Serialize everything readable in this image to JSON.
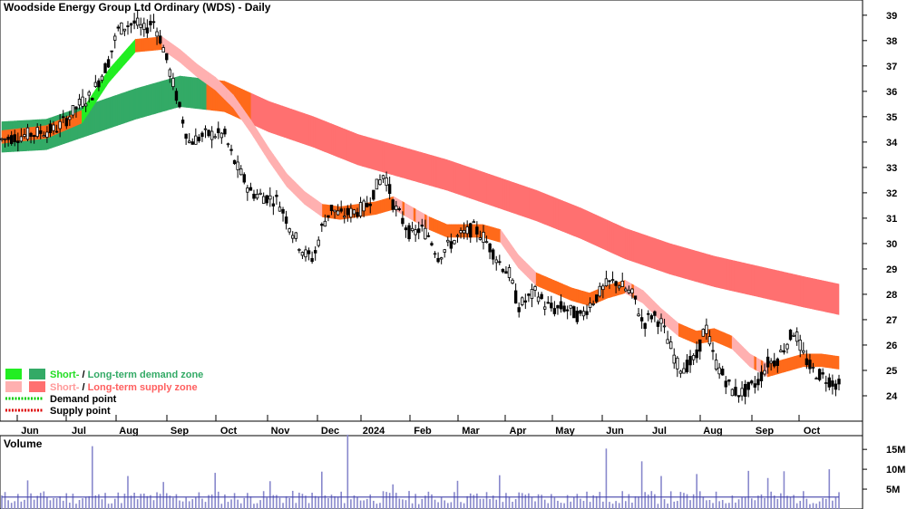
{
  "chart_data": {
    "type": "candlestick",
    "title": "Woodside Energy Group Ltd Ordinary (WDS) - Daily",
    "y_axis": {
      "ticks": [
        24,
        25,
        26,
        27,
        28,
        29,
        30,
        31,
        32,
        33,
        34,
        35,
        36,
        37,
        38,
        39
      ],
      "ylim": [
        23.0,
        39.6
      ],
      "position": "right"
    },
    "x_axis": {
      "labels": [
        "Jun",
        "Jul",
        "Aug",
        "Sep",
        "Oct",
        "Nov",
        "Dec",
        "2024",
        "Feb",
        "Mar",
        "Apr",
        "May",
        "Jun",
        "Jul",
        "Aug",
        "Sep",
        "Oct"
      ]
    },
    "price_path": [
      [
        0,
        34.1
      ],
      [
        3,
        34.3
      ],
      [
        6,
        34.5
      ],
      [
        7,
        34.8
      ],
      [
        9,
        35.6
      ],
      [
        10,
        35.8
      ],
      [
        12,
        37.2
      ],
      [
        13,
        38.4
      ],
      [
        14,
        38.6
      ],
      [
        15,
        38.7
      ],
      [
        16,
        38.4
      ],
      [
        17,
        38.8
      ],
      [
        18,
        37.9
      ],
      [
        19,
        36.6
      ],
      [
        20,
        35.3
      ],
      [
        21,
        34.0
      ],
      [
        23,
        34.3
      ],
      [
        25,
        34.3
      ],
      [
        26,
        33.3
      ],
      [
        28,
        32.0
      ],
      [
        31,
        31.7
      ],
      [
        33,
        30.2
      ],
      [
        34,
        29.6
      ],
      [
        35,
        29.4
      ],
      [
        36,
        30.7
      ],
      [
        37,
        31.4
      ],
      [
        38,
        31.1
      ],
      [
        40,
        31.3
      ],
      [
        41,
        31.5
      ],
      [
        42,
        32.2
      ],
      [
        43,
        32.8
      ],
      [
        44,
        31.5
      ],
      [
        46,
        30.3
      ],
      [
        47,
        30.6
      ],
      [
        48,
        30.3
      ],
      [
        49,
        29.5
      ],
      [
        51,
        30.2
      ],
      [
        52,
        30.4
      ],
      [
        53,
        30.6
      ],
      [
        54,
        30.3
      ],
      [
        56,
        29.2
      ],
      [
        57,
        28.8
      ],
      [
        58,
        27.5
      ],
      [
        59,
        27.8
      ],
      [
        60,
        28.1
      ],
      [
        61,
        27.6
      ],
      [
        62,
        27.4
      ],
      [
        63,
        27.5
      ],
      [
        64,
        27.3
      ],
      [
        65,
        27.1
      ],
      [
        66,
        27.6
      ],
      [
        67,
        28.0
      ],
      [
        68,
        28.4
      ],
      [
        69,
        28.5
      ],
      [
        71,
        27.9
      ],
      [
        72,
        26.8
      ],
      [
        73,
        27.2
      ],
      [
        74,
        26.9
      ],
      [
        75,
        26.0
      ],
      [
        76,
        25.1
      ],
      [
        77,
        25.2
      ],
      [
        78,
        25.5
      ],
      [
        79,
        26.8
      ],
      [
        80,
        25.4
      ],
      [
        81,
        24.8
      ],
      [
        82,
        24.2
      ],
      [
        83,
        24.1
      ],
      [
        84,
        24.3
      ],
      [
        85,
        24.6
      ],
      [
        86,
        25.3
      ],
      [
        87,
        25.4
      ],
      [
        88,
        26.0
      ],
      [
        89,
        26.6
      ],
      [
        90,
        25.6
      ],
      [
        91,
        25.0
      ],
      [
        92,
        24.8
      ],
      [
        93,
        24.6
      ],
      [
        94,
        24.4
      ]
    ],
    "short_term_zone": [
      [
        0,
        34.2
      ],
      [
        5,
        34.4
      ],
      [
        9,
        35.0
      ],
      [
        12,
        36.6
      ],
      [
        15,
        37.8
      ],
      [
        18,
        37.9
      ],
      [
        20,
        37.4
      ],
      [
        22,
        36.8
      ],
      [
        24,
        36.3
      ],
      [
        26,
        35.6
      ],
      [
        28,
        34.6
      ],
      [
        30,
        33.5
      ],
      [
        32,
        32.5
      ],
      [
        34,
        31.8
      ],
      [
        36,
        31.3
      ],
      [
        38,
        31.2
      ],
      [
        40,
        31.3
      ],
      [
        42,
        31.4
      ],
      [
        44,
        31.6
      ],
      [
        46,
        31.2
      ],
      [
        48,
        30.8
      ],
      [
        50,
        30.5
      ],
      [
        52,
        30.5
      ],
      [
        54,
        30.5
      ],
      [
        56,
        30.3
      ],
      [
        58,
        29.3
      ],
      [
        60,
        28.6
      ],
      [
        62,
        28.3
      ],
      [
        64,
        28.0
      ],
      [
        66,
        27.8
      ],
      [
        68,
        28.1
      ],
      [
        70,
        28.3
      ],
      [
        72,
        27.9
      ],
      [
        74,
        27.2
      ],
      [
        76,
        26.6
      ],
      [
        78,
        26.3
      ],
      [
        80,
        26.4
      ],
      [
        82,
        26.1
      ],
      [
        84,
        25.4
      ],
      [
        86,
        25.0
      ],
      [
        88,
        25.2
      ],
      [
        90,
        25.4
      ],
      [
        92,
        25.4
      ],
      [
        94,
        25.3
      ]
    ],
    "short_term_width": 0.5,
    "long_term_zone": [
      [
        0,
        34.2
      ],
      [
        5,
        34.3
      ],
      [
        10,
        34.9
      ],
      [
        15,
        35.5
      ],
      [
        20,
        36.0
      ],
      [
        25,
        35.8
      ],
      [
        30,
        35.0
      ],
      [
        35,
        34.4
      ],
      [
        40,
        33.7
      ],
      [
        45,
        33.2
      ],
      [
        50,
        32.7
      ],
      [
        55,
        32.1
      ],
      [
        60,
        31.5
      ],
      [
        65,
        30.8
      ],
      [
        70,
        30.0
      ],
      [
        75,
        29.4
      ],
      [
        80,
        28.9
      ],
      [
        85,
        28.5
      ],
      [
        90,
        28.1
      ],
      [
        94,
        27.8
      ]
    ],
    "long_term_width": 1.2,
    "volume": {
      "label": "Volume",
      "ticks": [
        "15M",
        "10M",
        "5M"
      ],
      "tick_values": [
        15,
        10,
        5
      ],
      "ylim": [
        0,
        18
      ],
      "average_level": 3.0,
      "spikes": [
        [
          3,
          7.2
        ],
        [
          10,
          15.8
        ],
        [
          14,
          8.3
        ],
        [
          18,
          6.8
        ],
        [
          24,
          9.1
        ],
        [
          30,
          7.0
        ],
        [
          36,
          9.4
        ],
        [
          39,
          18.7
        ],
        [
          44,
          6.2
        ],
        [
          51,
          7.1
        ],
        [
          56,
          8.5
        ],
        [
          68,
          15.2
        ],
        [
          72,
          12.0
        ],
        [
          74,
          8.3
        ],
        [
          78,
          8.8
        ],
        [
          84,
          9.6
        ],
        [
          86,
          7.8
        ],
        [
          88,
          9.5
        ],
        [
          93,
          10.0
        ]
      ]
    },
    "legend": {
      "row1": {
        "short": "Short-",
        "sep": " / ",
        "long": "Long-term demand zone"
      },
      "row2": {
        "short": "Short-",
        "sep": " / ",
        "long": "Long-term supply zone"
      },
      "row3": "Demand point",
      "row4": "Supply point"
    },
    "colors": {
      "short_demand": "#22ee22",
      "long_demand": "#33aa66",
      "short_supply": "#ffb0b0",
      "long_supply": "#ff7070",
      "transition": "#ff6a1a",
      "demand_point": "#00cc00",
      "supply_point": "#dd0000",
      "candle": "#000000",
      "volume": "#8888cc",
      "volume_avg": "#4444aa"
    }
  }
}
